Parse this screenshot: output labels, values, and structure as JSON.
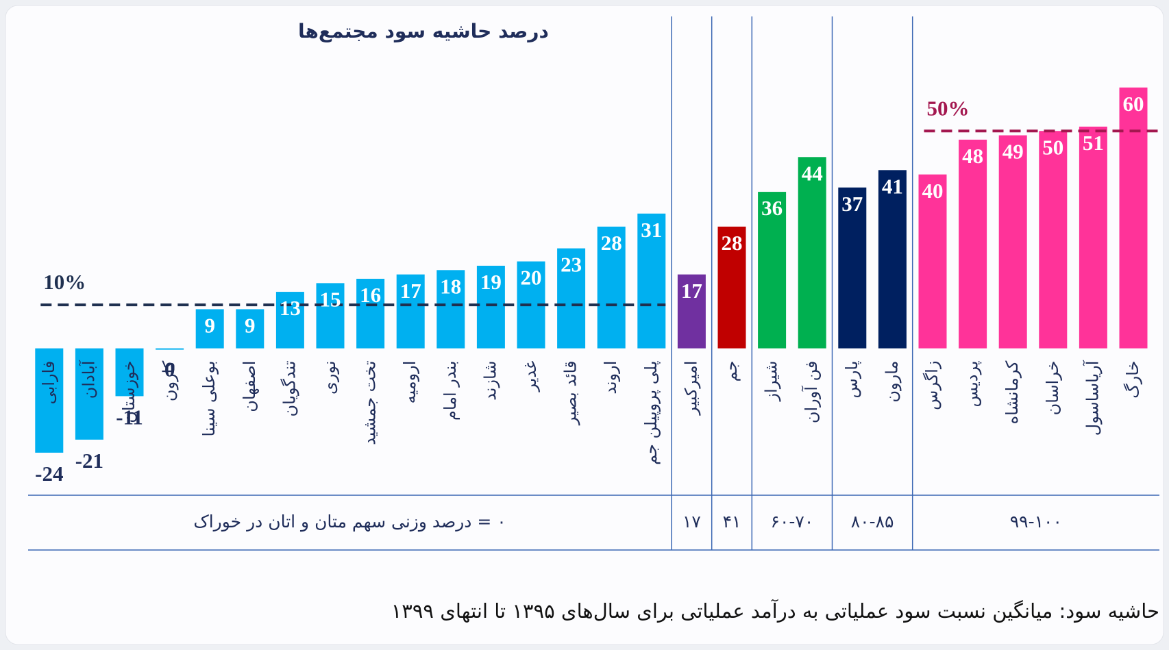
{
  "chart_data": {
    "type": "bar",
    "title": "درصد حاشیه سود مجتمع‌ها",
    "footnote": "حاشیه سود: میانگین نسبت سود عملیاتی به درآمد عملیاتی برای سال‌های ۱۳۹۵ تا انتهای ۱۳۹۹",
    "ylim": [
      -30,
      65
    ],
    "groups": [
      {
        "name": "۰ = درصد وزنی سهم متان و اتان در خوراک",
        "color": "#00b0f0",
        "categories": [
          "فارابی",
          "آبادان",
          "خوزستان",
          "کارون",
          "بوعلی سینا",
          "اصفهان",
          "تندگویان",
          "نوری",
          "تخت جمشید",
          "ارومیه",
          "بندر امام",
          "شازند",
          "غدیر",
          "قائد بصیر",
          "اروند",
          "پلی پروپیلن جم"
        ],
        "values": [
          -24,
          -21,
          -11,
          0,
          9,
          9,
          13,
          15,
          16,
          17,
          18,
          19,
          20,
          23,
          28,
          31
        ]
      },
      {
        "name": "۱۷",
        "color": "#7030a0",
        "categories": [
          "امیرکبیر"
        ],
        "values": [
          17
        ]
      },
      {
        "name": "۴۱",
        "color": "#c00000",
        "categories": [
          "جم"
        ],
        "values": [
          28
        ]
      },
      {
        "name": "۶۰-۷۰",
        "color": "#00b050",
        "categories": [
          "شیراز",
          "فن آوران"
        ],
        "values": [
          36,
          44
        ]
      },
      {
        "name": "۸۰-۸۵",
        "color": "#002060",
        "categories": [
          "پارس",
          "مارون"
        ],
        "values": [
          37,
          41
        ]
      },
      {
        "name": "۹۹-۱۰۰",
        "color": "#ff3399",
        "categories": [
          "زاگرس",
          "پردیس",
          "کرمانشاه",
          "خراسان",
          "آریاساسول",
          "خارگ"
        ],
        "values": [
          40,
          48,
          49,
          50,
          51,
          60
        ]
      }
    ],
    "reference_lines": [
      {
        "value": 10,
        "label": "10%",
        "color": "#1f3050",
        "group": 0
      },
      {
        "value": 50,
        "label": "50%",
        "color": "#a3174f",
        "group": 5
      }
    ]
  }
}
